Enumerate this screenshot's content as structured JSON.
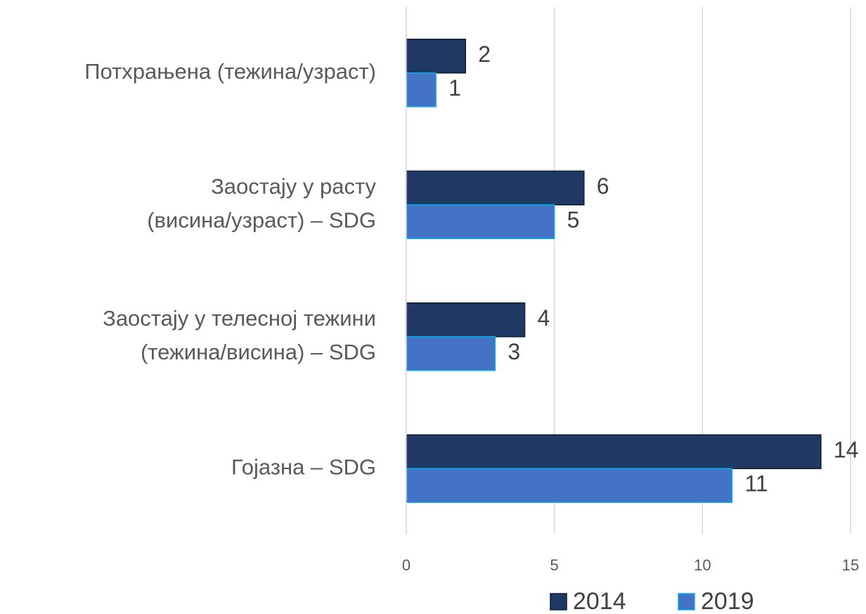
{
  "chart_data": {
    "type": "hbar",
    "categories": [
      "Потхрањена (тежина/узраст)",
      "Заостају у расту\n(висина/узраст) – SDG",
      "Заостају у телесној тежини\n(тежина/висина) – SDG",
      "Гојазна – SDG"
    ],
    "series": [
      {
        "name": "2014",
        "color": "#1f3864",
        "values": [
          2,
          6,
          4,
          14
        ]
      },
      {
        "name": "2019",
        "color": "#4472c4",
        "values": [
          1,
          5,
          3,
          11
        ]
      }
    ],
    "xlim": [
      0,
      15
    ],
    "xticks": [
      0,
      5,
      10,
      15
    ],
    "grid": true,
    "legend": "bottom"
  }
}
